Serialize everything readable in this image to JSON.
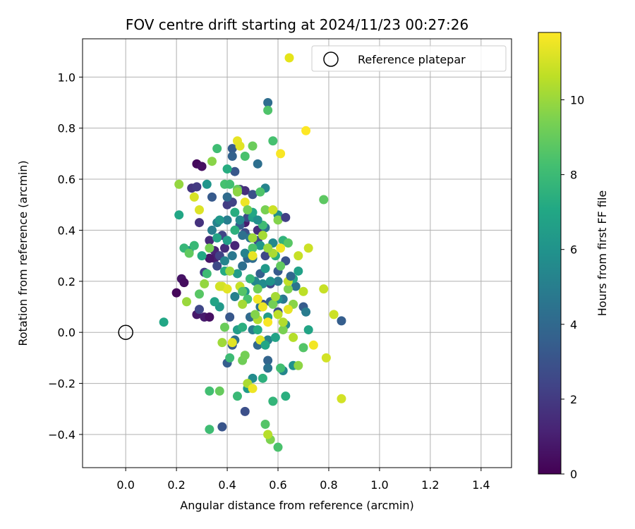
{
  "chart_data": {
    "type": "scatter",
    "title": "FOV centre drift starting at 2024/11/23 00:27:26",
    "xlabel": "Angular distance from reference (arcmin)",
    "ylabel": "Rotation from reference (arcmin)",
    "xlim": [
      -0.17,
      1.52
    ],
    "ylim": [
      -0.53,
      1.15
    ],
    "xticks": [
      "0.0",
      "0.2",
      "0.4",
      "0.6",
      "0.8",
      "1.0",
      "1.2",
      "1.4"
    ],
    "yticks": [
      "−0.4",
      "−0.2",
      "0.0",
      "0.2",
      "0.4",
      "0.6",
      "0.8",
      "1.0"
    ],
    "grid": true,
    "legend": {
      "placement": "top-right",
      "entries": [
        {
          "label": "",
          "marker": "filled-circle",
          "color": "#e5e419"
        },
        {
          "label": "Reference platepar",
          "marker": "open-circle",
          "color": "#000000"
        }
      ]
    },
    "colorbar": {
      "label": "Hours from first FF file",
      "range": [
        0,
        11.8
      ],
      "ticks": [
        "0",
        "2",
        "4",
        "6",
        "8",
        "10"
      ],
      "colormap": "viridis"
    },
    "reference_point": {
      "x": 0.0,
      "y": 0.0
    },
    "points": [
      [
        0.2,
        0.155,
        0.2
      ],
      [
        0.22,
        0.21,
        0.6
      ],
      [
        0.23,
        0.195,
        0.4
      ],
      [
        0.28,
        0.66,
        0.3
      ],
      [
        0.3,
        0.65,
        0.5
      ],
      [
        0.28,
        0.07,
        0.8
      ],
      [
        0.31,
        0.06,
        0.9
      ],
      [
        0.33,
        0.06,
        0.5
      ],
      [
        0.47,
        0.43,
        0.9
      ],
      [
        0.35,
        0.32,
        1.2
      ],
      [
        0.35,
        0.29,
        1.0
      ],
      [
        0.33,
        0.29,
        0.7
      ],
      [
        0.39,
        0.33,
        1.5
      ],
      [
        0.52,
        0.4,
        1.5
      ],
      [
        0.43,
        0.34,
        1.3
      ],
      [
        0.33,
        0.36,
        1.4
      ],
      [
        0.26,
        0.565,
        1.8
      ],
      [
        0.28,
        0.57,
        2.0
      ],
      [
        0.29,
        0.43,
        1.7
      ],
      [
        0.31,
        0.235,
        2.2
      ],
      [
        0.29,
        0.09,
        2.5
      ],
      [
        0.37,
        0.3,
        2.3
      ],
      [
        0.4,
        0.5,
        2.1
      ],
      [
        0.42,
        0.51,
        2.3
      ],
      [
        0.45,
        0.56,
        2.0
      ],
      [
        0.47,
        0.555,
        1.6
      ],
      [
        0.36,
        0.26,
        2.6
      ],
      [
        0.38,
        0.38,
        2.4
      ],
      [
        0.48,
        0.45,
        2.7
      ],
      [
        0.47,
        0.39,
        2.8
      ],
      [
        0.5,
        0.54,
        2.9
      ],
      [
        0.52,
        0.36,
        2.7
      ],
      [
        0.55,
        0.3,
        2.5
      ],
      [
        0.57,
        0.19,
        2.6
      ],
      [
        0.54,
        0.11,
        3.0
      ],
      [
        0.63,
        0.28,
        3.0
      ],
      [
        0.6,
        0.08,
        2.8
      ],
      [
        0.47,
        -0.31,
        2.9
      ],
      [
        0.38,
        -0.37,
        3.1
      ],
      [
        0.34,
        0.53,
        3.3
      ],
      [
        0.42,
        0.72,
        3.4
      ],
      [
        0.43,
        0.63,
        3.2
      ],
      [
        0.45,
        0.42,
        3.5
      ],
      [
        0.41,
        0.06,
        3.2
      ],
      [
        0.4,
        -0.12,
        3.5
      ],
      [
        0.42,
        -0.05,
        3.3
      ],
      [
        0.42,
        0.69,
        3.7
      ],
      [
        0.48,
        0.29,
        3.9
      ],
      [
        0.53,
        0.23,
        3.6
      ],
      [
        0.57,
        0.12,
        3.7
      ],
      [
        0.6,
        0.24,
        3.3
      ],
      [
        0.7,
        0.1,
        3.4
      ],
      [
        0.85,
        0.045,
        3.5
      ],
      [
        0.56,
        -0.11,
        3.8
      ],
      [
        0.56,
        0.9,
        4.2
      ],
      [
        0.52,
        0.66,
        4.3
      ],
      [
        0.4,
        0.53,
        4.1
      ],
      [
        0.46,
        0.38,
        4.4
      ],
      [
        0.46,
        0.26,
        4.3
      ],
      [
        0.49,
        0.37,
        4.6
      ],
      [
        0.5,
        0.29,
        4.2
      ],
      [
        0.55,
        0.41,
        4.4
      ],
      [
        0.53,
        0.1,
        4.6
      ],
      [
        0.49,
        0.06,
        4.1
      ],
      [
        0.43,
        -0.03,
        4.3
      ],
      [
        0.52,
        -0.05,
        4.0
      ],
      [
        0.56,
        -0.14,
        4.5
      ],
      [
        0.6,
        0.2,
        4.8
      ],
      [
        0.62,
        0.13,
        4.7
      ],
      [
        0.67,
        0.18,
        4.5
      ],
      [
        0.71,
        0.08,
        4.9
      ],
      [
        0.5,
        0.01,
        4.9
      ],
      [
        0.34,
        0.4,
        5.0
      ],
      [
        0.36,
        0.43,
        5.2
      ],
      [
        0.4,
        0.44,
        5.0
      ],
      [
        0.39,
        0.28,
        5.3
      ],
      [
        0.43,
        0.14,
        5.1
      ],
      [
        0.45,
        0.44,
        5.5
      ],
      [
        0.47,
        0.31,
        5.2
      ],
      [
        0.51,
        0.2,
        5.4
      ],
      [
        0.54,
        0.19,
        5.6
      ],
      [
        0.55,
        0.565,
        5.3
      ],
      [
        0.58,
        0.35,
        5.5
      ],
      [
        0.6,
        0.46,
        5.7
      ],
      [
        0.6,
        0.13,
        5.8
      ],
      [
        0.63,
        0.03,
        5.5
      ],
      [
        0.56,
        -0.03,
        5.2
      ],
      [
        0.5,
        -0.18,
        5.6
      ],
      [
        0.62,
        -0.15,
        5.4
      ],
      [
        0.66,
        -0.13,
        5.9
      ],
      [
        0.25,
        0.32,
        6.0
      ],
      [
        0.32,
        0.58,
        6.1
      ],
      [
        0.37,
        0.44,
        6.2
      ],
      [
        0.37,
        0.1,
        6.3
      ],
      [
        0.44,
        0.23,
        6.4
      ],
      [
        0.44,
        0.01,
        6.5
      ],
      [
        0.47,
        0.16,
        6.1
      ],
      [
        0.48,
        -0.22,
        6.4
      ],
      [
        0.5,
        0.45,
        6.6
      ],
      [
        0.53,
        0.34,
        6.2
      ],
      [
        0.55,
        0.25,
        6.3
      ],
      [
        0.56,
        0.06,
        6.5
      ],
      [
        0.59,
        -0.02,
        6.8
      ],
      [
        0.68,
        0.24,
        6.7
      ],
      [
        0.72,
        0.01,
        6.9
      ],
      [
        0.15,
        0.04,
        7.0
      ],
      [
        0.21,
        0.46,
        7.0
      ],
      [
        0.3,
        0.3,
        7.1
      ],
      [
        0.39,
        0.24,
        7.2
      ],
      [
        0.4,
        0.64,
        7.3
      ],
      [
        0.43,
        0.47,
        7.3
      ],
      [
        0.46,
        0.02,
        7.4
      ],
      [
        0.5,
        0.47,
        7.0
      ],
      [
        0.52,
        0.01,
        7.2
      ],
      [
        0.54,
        -0.18,
        7.5
      ],
      [
        0.59,
        0.3,
        7.3
      ],
      [
        0.62,
        0.36,
        7.6
      ],
      [
        0.63,
        -0.25,
        7.4
      ],
      [
        0.58,
        -0.27,
        7.7
      ],
      [
        0.66,
        0.21,
        7.1
      ],
      [
        0.23,
        0.33,
        7.8
      ],
      [
        0.27,
        0.34,
        7.9
      ],
      [
        0.32,
        0.23,
        8.0
      ],
      [
        0.33,
        -0.23,
        8.2
      ],
      [
        0.33,
        -0.38,
        8.1
      ],
      [
        0.36,
        0.72,
        8.1
      ],
      [
        0.39,
        0.58,
        8.3
      ],
      [
        0.41,
        0.58,
        8.2
      ],
      [
        0.41,
        -0.1,
        8.0
      ],
      [
        0.44,
        -0.25,
        7.9
      ],
      [
        0.47,
        0.69,
        8.4
      ],
      [
        0.48,
        0.13,
        8.3
      ],
      [
        0.5,
        0.33,
        8.4
      ],
      [
        0.53,
        0.55,
        8.5
      ],
      [
        0.54,
        0.42,
        8.1
      ],
      [
        0.55,
        -0.36,
        8.6
      ],
      [
        0.56,
        0.87,
        8.5
      ],
      [
        0.58,
        0.75,
        8.3
      ],
      [
        0.6,
        -0.45,
        8.4
      ],
      [
        0.61,
        -0.14,
        8.2
      ],
      [
        0.64,
        0.35,
        8.7
      ],
      [
        0.7,
        -0.06,
        8.6
      ],
      [
        0.78,
        0.52,
        8.8
      ],
      [
        0.29,
        0.15,
        8.7
      ],
      [
        0.25,
        0.31,
        8.9
      ],
      [
        0.37,
        -0.23,
        9.0
      ],
      [
        0.39,
        0.02,
        9.1
      ],
      [
        0.44,
        0.56,
        9.0
      ],
      [
        0.46,
        -0.11,
        9.2
      ],
      [
        0.47,
        -0.09,
        9.3
      ],
      [
        0.5,
        0.73,
        9.1
      ],
      [
        0.52,
        0.17,
        9.2
      ],
      [
        0.55,
        0.48,
        9.4
      ],
      [
        0.57,
        -0.42,
        9.5
      ],
      [
        0.58,
        0.11,
        9.3
      ],
      [
        0.6,
        0.44,
        9.6
      ],
      [
        0.62,
        0.01,
        9.4
      ],
      [
        0.64,
        0.17,
        9.5
      ],
      [
        0.66,
        0.11,
        9.7
      ],
      [
        0.68,
        -0.13,
        9.8
      ],
      [
        0.44,
        0.55,
        9.8
      ],
      [
        0.34,
        0.67,
        9.7
      ],
      [
        0.21,
        0.58,
        9.9
      ],
      [
        0.24,
        0.12,
        10.0
      ],
      [
        0.38,
        -0.04,
        10.1
      ],
      [
        0.41,
        0.24,
        10.0
      ],
      [
        0.46,
        0.11,
        10.2
      ],
      [
        0.48,
        -0.2,
        10.3
      ],
      [
        0.5,
        0.37,
        10.1
      ],
      [
        0.52,
        0.05,
        10.4
      ],
      [
        0.54,
        0.38,
        10.2
      ],
      [
        0.56,
        -0.4,
        10.5
      ],
      [
        0.58,
        0.31,
        10.3
      ],
      [
        0.6,
        0.07,
        10.6
      ],
      [
        0.62,
        0.04,
        10.4
      ],
      [
        0.64,
        0.2,
        10.7
      ],
      [
        0.66,
        -0.02,
        10.5
      ],
      [
        0.68,
        0.3,
        10.8
      ],
      [
        0.7,
        0.16,
        10.6
      ],
      [
        0.72,
        0.33,
        10.9
      ],
      [
        0.58,
        0.48,
        10.9
      ],
      [
        0.78,
        0.17,
        10.8
      ],
      [
        0.79,
        -0.1,
        11.0
      ],
      [
        0.82,
        0.07,
        10.9
      ],
      [
        0.85,
        -0.26,
        11.0
      ],
      [
        0.27,
        0.53,
        11.1
      ],
      [
        0.29,
        0.48,
        11.2
      ],
      [
        0.38,
        0.18,
        11.1
      ],
      [
        0.4,
        0.17,
        11.3
      ],
      [
        0.44,
        0.75,
        11.4
      ],
      [
        0.45,
        0.73,
        11.3
      ],
      [
        0.47,
        0.51,
        11.5
      ],
      [
        0.5,
        0.3,
        11.4
      ],
      [
        0.52,
        0.13,
        11.6
      ],
      [
        0.54,
        0.1,
        11.5
      ],
      [
        0.56,
        0.04,
        11.7
      ],
      [
        0.61,
        0.33,
        11.6
      ],
      [
        0.61,
        0.7,
        11.7
      ],
      [
        0.71,
        0.79,
        11.8
      ],
      [
        0.5,
        -0.22,
        11.5
      ],
      [
        0.42,
        -0.04,
        11.3
      ],
      [
        0.64,
        0.09,
        11.4
      ],
      [
        0.74,
        -0.05,
        11.6
      ],
      [
        0.53,
        -0.03,
        11.2
      ],
      [
        0.37,
        0.18,
        11.0
      ],
      [
        0.33,
        0.33,
        9.4
      ],
      [
        0.36,
        0.37,
        6.9
      ],
      [
        0.42,
        0.3,
        4.7
      ],
      [
        0.49,
        0.21,
        7.8
      ],
      [
        0.51,
        0.07,
        9.6
      ],
      [
        0.57,
        0.2,
        6.0
      ],
      [
        0.59,
        0.14,
        10.2
      ],
      [
        0.61,
        0.26,
        8.9
      ],
      [
        0.65,
        0.22,
        3.9
      ],
      [
        0.45,
        0.18,
        10.8
      ],
      [
        0.43,
        0.4,
        7.5
      ],
      [
        0.48,
        0.48,
        9.2
      ],
      [
        0.52,
        0.44,
        5.8
      ],
      [
        0.56,
        0.33,
        10.0
      ],
      [
        0.4,
        0.36,
        6.6
      ],
      [
        0.46,
        0.16,
        8.6
      ],
      [
        0.63,
        0.45,
        2.2
      ],
      [
        0.35,
        0.12,
        6.8
      ],
      [
        0.31,
        0.19,
        9.9
      ],
      [
        0.55,
        -0.05,
        7.0
      ]
    ]
  }
}
